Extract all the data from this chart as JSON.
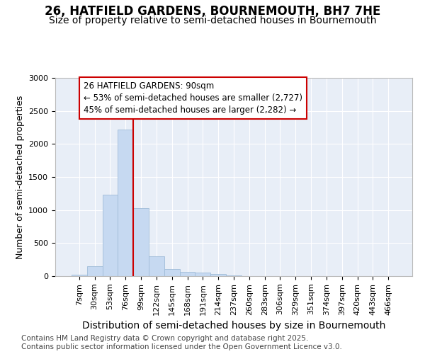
{
  "title": "26, HATFIELD GARDENS, BOURNEMOUTH, BH7 7HE",
  "subtitle": "Size of property relative to semi-detached houses in Bournemouth",
  "xlabel": "Distribution of semi-detached houses by size in Bournemouth",
  "ylabel": "Number of semi-detached properties",
  "bar_color": "#c6d9f1",
  "bar_edge_color": "#a0bcd8",
  "background_color": "#e8eef7",
  "grid_color": "#ffffff",
  "categories": [
    "7sqm",
    "30sqm",
    "53sqm",
    "76sqm",
    "99sqm",
    "122sqm",
    "145sqm",
    "168sqm",
    "191sqm",
    "214sqm",
    "237sqm",
    "260sqm",
    "283sqm",
    "306sqm",
    "329sqm",
    "351sqm",
    "374sqm",
    "397sqm",
    "420sqm",
    "443sqm",
    "466sqm"
  ],
  "values": [
    20,
    150,
    1230,
    2220,
    1025,
    295,
    105,
    65,
    50,
    30,
    10,
    0,
    0,
    0,
    0,
    0,
    0,
    0,
    0,
    0,
    0
  ],
  "vline_color": "#cc0000",
  "annotation_text": "26 HATFIELD GARDENS: 90sqm\n← 53% of semi-detached houses are smaller (2,727)\n45% of semi-detached houses are larger (2,282) →",
  "annotation_box_color": "#ffffff",
  "annotation_box_edge": "#cc0000",
  "ylim": [
    0,
    3000
  ],
  "yticks": [
    0,
    500,
    1000,
    1500,
    2000,
    2500,
    3000
  ],
  "footer_text": "Contains HM Land Registry data © Crown copyright and database right 2025.\nContains public sector information licensed under the Open Government Licence v3.0.",
  "title_fontsize": 12,
  "subtitle_fontsize": 10,
  "xlabel_fontsize": 10,
  "ylabel_fontsize": 9,
  "tick_fontsize": 8,
  "annotation_fontsize": 8.5,
  "footer_fontsize": 7.5
}
